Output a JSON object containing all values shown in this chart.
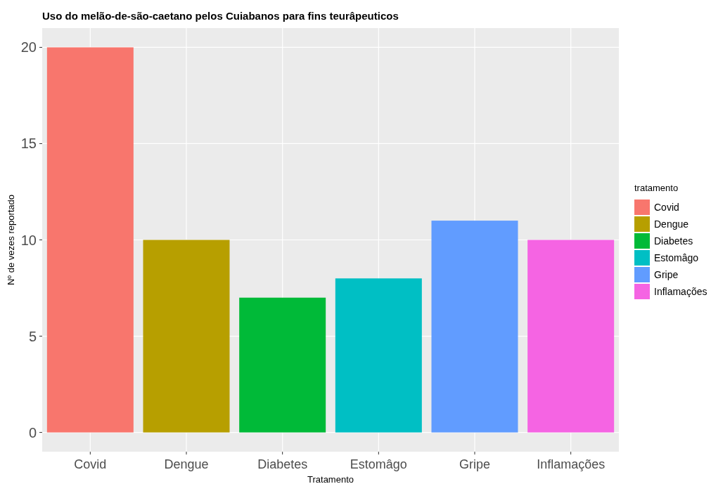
{
  "chart_data": {
    "type": "bar",
    "title": "Uso do melão-de-são-caetano pelos Cuiabanos para fins teurâpeuticos",
    "xlabel": "Tratamento",
    "ylabel": "Nº de vezes reportado",
    "legend_title": "tratamento",
    "categories": [
      "Covid",
      "Dengue",
      "Diabetes",
      "Estomâgo",
      "Gripe",
      "Inflamações"
    ],
    "series": [
      {
        "name": "Covid",
        "color": "#f8766d",
        "values": [
          20,
          null,
          null,
          null,
          null,
          null
        ]
      },
      {
        "name": "Dengue",
        "color": "#b79f00",
        "values": [
          null,
          10,
          null,
          null,
          null,
          null
        ]
      },
      {
        "name": "Diabetes",
        "color": "#00ba38",
        "values": [
          null,
          null,
          7,
          null,
          null,
          null
        ]
      },
      {
        "name": "Estomâgo",
        "color": "#00bfc4",
        "values": [
          null,
          null,
          null,
          8,
          null,
          null
        ]
      },
      {
        "name": "Gripe",
        "color": "#619cff",
        "values": [
          null,
          null,
          null,
          null,
          11,
          null
        ]
      },
      {
        "name": "Inflamações",
        "color": "#f564e3",
        "values": [
          null,
          null,
          null,
          null,
          null,
          10
        ]
      }
    ],
    "ylim": [
      -1,
      21
    ],
    "yticks": [
      0,
      5,
      10,
      15,
      20
    ],
    "grid": true,
    "legend": "right"
  }
}
